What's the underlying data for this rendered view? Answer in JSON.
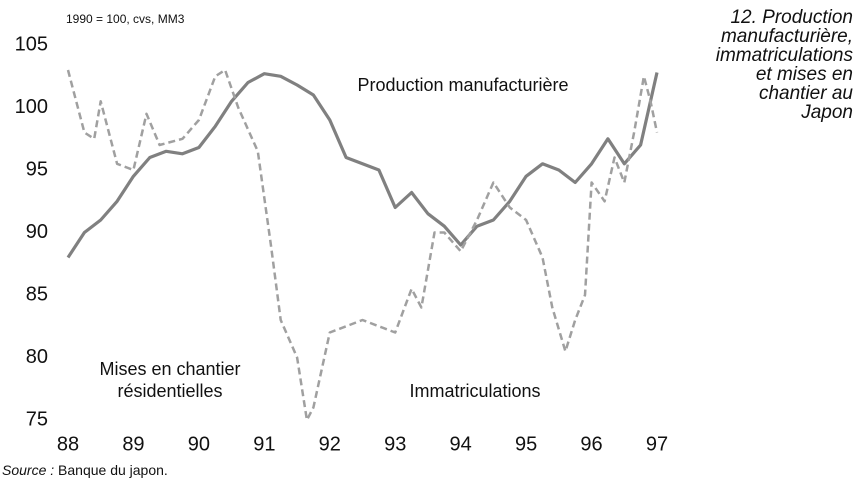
{
  "chart_data": {
    "type": "line",
    "title": "12. Production manufacturière, immatriculations et mises en chantier au Japon",
    "subtitle": "1990 = 100, cvs, MM3",
    "source_label": "Source :",
    "source": "Banque du japon.",
    "annotations": [
      "Immatriculations"
    ],
    "xlim": [
      88,
      97
    ],
    "xticks": [
      88,
      89,
      90,
      91,
      92,
      93,
      94,
      95,
      96,
      97
    ],
    "ylim": [
      75,
      105
    ],
    "yticks": [
      75,
      80,
      85,
      90,
      95,
      100,
      105
    ],
    "grid": false,
    "series": [
      {
        "name": "Production manufacturière",
        "color": "#808080",
        "dash": false,
        "x": [
          88,
          88.25,
          88.5,
          88.75,
          89,
          89.25,
          89.5,
          89.75,
          90,
          90.25,
          90.5,
          90.75,
          91,
          91.25,
          91.5,
          91.75,
          92,
          92.25,
          92.5,
          92.75,
          93,
          93.25,
          93.5,
          93.75,
          94,
          94.25,
          94.5,
          94.75,
          95,
          95.25,
          95.5,
          95.75,
          96,
          96.25,
          96.5,
          96.75,
          97
        ],
        "values": [
          88,
          90,
          91,
          92.5,
          94.5,
          96,
          96.5,
          96.3,
          96.8,
          98.5,
          100.5,
          102,
          102.7,
          102.5,
          101.8,
          101,
          99,
          96,
          95.5,
          95,
          92,
          93.2,
          91.5,
          90.5,
          89,
          90.5,
          91,
          92.5,
          94.5,
          95.5,
          95,
          94,
          95.5,
          97.5,
          95.5,
          97,
          102.8
        ]
      },
      {
        "name": "Mises en chantier résidentielles",
        "color": "#a0a0a0",
        "dash": true,
        "x": [
          88,
          88.25,
          88.4,
          88.5,
          88.75,
          89,
          89.2,
          89.4,
          89.75,
          90,
          90.25,
          90.4,
          90.6,
          90.9,
          91.1,
          91.25,
          91.5,
          91.65,
          91.75,
          92,
          92.25,
          92.5,
          92.75,
          93,
          93.25,
          93.4,
          93.6,
          93.75,
          94,
          94.25,
          94.5,
          94.75,
          95,
          95.25,
          95.4,
          95.6,
          95.75,
          95.9,
          96,
          96.2,
          96.35,
          96.5,
          96.65,
          96.8,
          96.9,
          97
        ],
        "values": [
          103,
          98,
          97.5,
          100.5,
          95.5,
          95,
          99.5,
          97,
          97.5,
          99,
          102.5,
          103,
          100,
          96.5,
          89,
          83,
          80,
          75,
          76,
          82,
          82.5,
          83,
          82.5,
          82,
          85.5,
          84,
          90,
          90,
          88.5,
          91,
          94,
          92,
          91,
          88,
          84,
          80.5,
          83,
          85,
          94,
          92.5,
          96,
          94,
          98,
          102.5,
          100.5,
          98
        ]
      }
    ]
  }
}
